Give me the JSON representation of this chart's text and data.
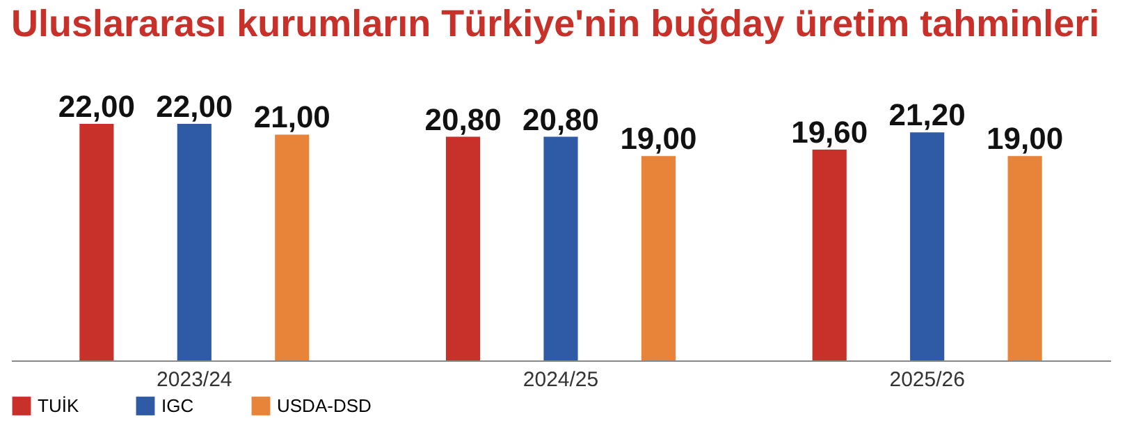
{
  "chart_data": {
    "type": "bar",
    "title": "Uluslararası kurumların Türkiye'nin buğday üretim tahminleri",
    "categories": [
      "2023/24",
      "2024/25",
      "2025/26"
    ],
    "tick_labels": "x",
    "legend": "bottom",
    "grid": false,
    "series": [
      {
        "name": "TUİK",
        "color": "#c8302a",
        "values": [
          22.0,
          20.8,
          19.6
        ],
        "value_labels": [
          "22,00",
          "20,80",
          "19,60"
        ]
      },
      {
        "name": "IGC",
        "color": "#2f5aa6",
        "values": [
          22.0,
          20.8,
          21.2
        ],
        "value_labels": [
          "22,00",
          "20,80",
          "21,20"
        ]
      },
      {
        "name": "USDA-DSD",
        "color": "#e8833a",
        "values": [
          21.0,
          19.0,
          19.0
        ],
        "value_labels": [
          "21,00",
          "19,00",
          "19,00"
        ]
      }
    ]
  }
}
